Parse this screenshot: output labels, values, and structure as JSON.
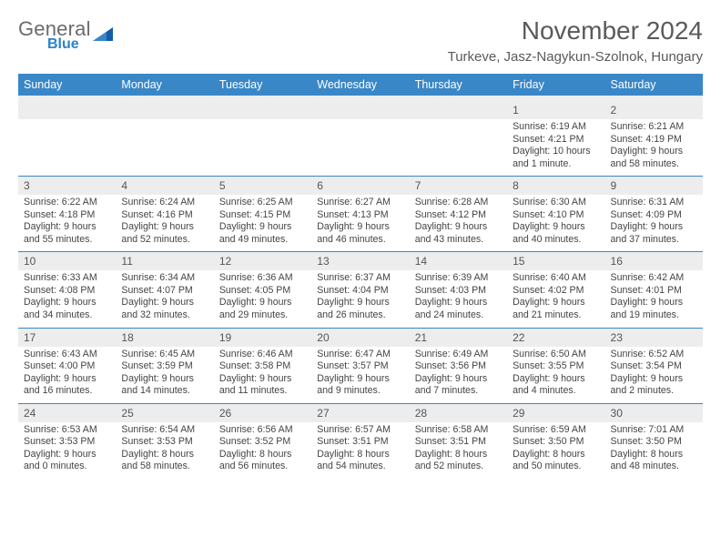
{
  "brand": {
    "general": "General",
    "blue": "Blue"
  },
  "title": "November 2024",
  "location": "Turkeve, Jasz-Nagykun-Szolnok, Hungary",
  "weekdays": [
    "Sunday",
    "Monday",
    "Tuesday",
    "Wednesday",
    "Thursday",
    "Friday",
    "Saturday"
  ],
  "colors": {
    "header_bar": "#3a87c7",
    "daynum_bg": "#ededed",
    "week_border": "#3a87c7",
    "title_color": "#5a5a5a",
    "text_color": "#444444",
    "logo_gray": "#6b6b6b",
    "logo_blue": "#2a82c9"
  },
  "weeks": [
    {
      "nums": [
        "",
        "",
        "",
        "",
        "",
        "1",
        "2"
      ],
      "cells": [
        {
          "sunrise": "",
          "sunset": "",
          "daylight": ""
        },
        {
          "sunrise": "",
          "sunset": "",
          "daylight": ""
        },
        {
          "sunrise": "",
          "sunset": "",
          "daylight": ""
        },
        {
          "sunrise": "",
          "sunset": "",
          "daylight": ""
        },
        {
          "sunrise": "",
          "sunset": "",
          "daylight": ""
        },
        {
          "sunrise": "Sunrise: 6:19 AM",
          "sunset": "Sunset: 4:21 PM",
          "daylight": "Daylight: 10 hours and 1 minute."
        },
        {
          "sunrise": "Sunrise: 6:21 AM",
          "sunset": "Sunset: 4:19 PM",
          "daylight": "Daylight: 9 hours and 58 minutes."
        }
      ]
    },
    {
      "nums": [
        "3",
        "4",
        "5",
        "6",
        "7",
        "8",
        "9"
      ],
      "cells": [
        {
          "sunrise": "Sunrise: 6:22 AM",
          "sunset": "Sunset: 4:18 PM",
          "daylight": "Daylight: 9 hours and 55 minutes."
        },
        {
          "sunrise": "Sunrise: 6:24 AM",
          "sunset": "Sunset: 4:16 PM",
          "daylight": "Daylight: 9 hours and 52 minutes."
        },
        {
          "sunrise": "Sunrise: 6:25 AM",
          "sunset": "Sunset: 4:15 PM",
          "daylight": "Daylight: 9 hours and 49 minutes."
        },
        {
          "sunrise": "Sunrise: 6:27 AM",
          "sunset": "Sunset: 4:13 PM",
          "daylight": "Daylight: 9 hours and 46 minutes."
        },
        {
          "sunrise": "Sunrise: 6:28 AM",
          "sunset": "Sunset: 4:12 PM",
          "daylight": "Daylight: 9 hours and 43 minutes."
        },
        {
          "sunrise": "Sunrise: 6:30 AM",
          "sunset": "Sunset: 4:10 PM",
          "daylight": "Daylight: 9 hours and 40 minutes."
        },
        {
          "sunrise": "Sunrise: 6:31 AM",
          "sunset": "Sunset: 4:09 PM",
          "daylight": "Daylight: 9 hours and 37 minutes."
        }
      ]
    },
    {
      "nums": [
        "10",
        "11",
        "12",
        "13",
        "14",
        "15",
        "16"
      ],
      "cells": [
        {
          "sunrise": "Sunrise: 6:33 AM",
          "sunset": "Sunset: 4:08 PM",
          "daylight": "Daylight: 9 hours and 34 minutes."
        },
        {
          "sunrise": "Sunrise: 6:34 AM",
          "sunset": "Sunset: 4:07 PM",
          "daylight": "Daylight: 9 hours and 32 minutes."
        },
        {
          "sunrise": "Sunrise: 6:36 AM",
          "sunset": "Sunset: 4:05 PM",
          "daylight": "Daylight: 9 hours and 29 minutes."
        },
        {
          "sunrise": "Sunrise: 6:37 AM",
          "sunset": "Sunset: 4:04 PM",
          "daylight": "Daylight: 9 hours and 26 minutes."
        },
        {
          "sunrise": "Sunrise: 6:39 AM",
          "sunset": "Sunset: 4:03 PM",
          "daylight": "Daylight: 9 hours and 24 minutes."
        },
        {
          "sunrise": "Sunrise: 6:40 AM",
          "sunset": "Sunset: 4:02 PM",
          "daylight": "Daylight: 9 hours and 21 minutes."
        },
        {
          "sunrise": "Sunrise: 6:42 AM",
          "sunset": "Sunset: 4:01 PM",
          "daylight": "Daylight: 9 hours and 19 minutes."
        }
      ]
    },
    {
      "nums": [
        "17",
        "18",
        "19",
        "20",
        "21",
        "22",
        "23"
      ],
      "cells": [
        {
          "sunrise": "Sunrise: 6:43 AM",
          "sunset": "Sunset: 4:00 PM",
          "daylight": "Daylight: 9 hours and 16 minutes."
        },
        {
          "sunrise": "Sunrise: 6:45 AM",
          "sunset": "Sunset: 3:59 PM",
          "daylight": "Daylight: 9 hours and 14 minutes."
        },
        {
          "sunrise": "Sunrise: 6:46 AM",
          "sunset": "Sunset: 3:58 PM",
          "daylight": "Daylight: 9 hours and 11 minutes."
        },
        {
          "sunrise": "Sunrise: 6:47 AM",
          "sunset": "Sunset: 3:57 PM",
          "daylight": "Daylight: 9 hours and 9 minutes."
        },
        {
          "sunrise": "Sunrise: 6:49 AM",
          "sunset": "Sunset: 3:56 PM",
          "daylight": "Daylight: 9 hours and 7 minutes."
        },
        {
          "sunrise": "Sunrise: 6:50 AM",
          "sunset": "Sunset: 3:55 PM",
          "daylight": "Daylight: 9 hours and 4 minutes."
        },
        {
          "sunrise": "Sunrise: 6:52 AM",
          "sunset": "Sunset: 3:54 PM",
          "daylight": "Daylight: 9 hours and 2 minutes."
        }
      ]
    },
    {
      "nums": [
        "24",
        "25",
        "26",
        "27",
        "28",
        "29",
        "30"
      ],
      "cells": [
        {
          "sunrise": "Sunrise: 6:53 AM",
          "sunset": "Sunset: 3:53 PM",
          "daylight": "Daylight: 9 hours and 0 minutes."
        },
        {
          "sunrise": "Sunrise: 6:54 AM",
          "sunset": "Sunset: 3:53 PM",
          "daylight": "Daylight: 8 hours and 58 minutes."
        },
        {
          "sunrise": "Sunrise: 6:56 AM",
          "sunset": "Sunset: 3:52 PM",
          "daylight": "Daylight: 8 hours and 56 minutes."
        },
        {
          "sunrise": "Sunrise: 6:57 AM",
          "sunset": "Sunset: 3:51 PM",
          "daylight": "Daylight: 8 hours and 54 minutes."
        },
        {
          "sunrise": "Sunrise: 6:58 AM",
          "sunset": "Sunset: 3:51 PM",
          "daylight": "Daylight: 8 hours and 52 minutes."
        },
        {
          "sunrise": "Sunrise: 6:59 AM",
          "sunset": "Sunset: 3:50 PM",
          "daylight": "Daylight: 8 hours and 50 minutes."
        },
        {
          "sunrise": "Sunrise: 7:01 AM",
          "sunset": "Sunset: 3:50 PM",
          "daylight": "Daylight: 8 hours and 48 minutes."
        }
      ]
    }
  ]
}
